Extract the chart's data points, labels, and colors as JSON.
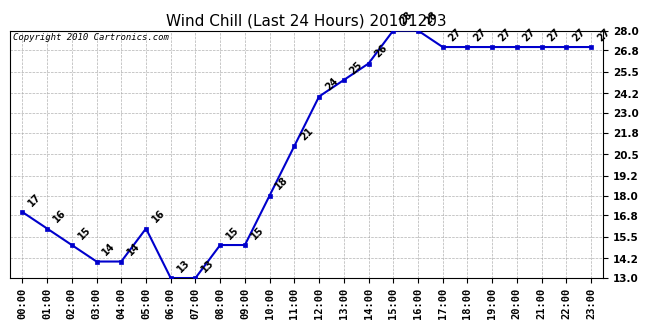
{
  "title": "Wind Chill (Last 24 Hours) 20101203",
  "copyright": "Copyright 2010 Cartronics.com",
  "hours": [
    0,
    1,
    2,
    3,
    4,
    5,
    6,
    7,
    8,
    9,
    10,
    11,
    12,
    13,
    14,
    15,
    16,
    17,
    18,
    19,
    20,
    21,
    22,
    23
  ],
  "values": [
    17,
    16,
    15,
    14,
    14,
    16,
    13,
    13,
    15,
    15,
    18,
    21,
    24,
    25,
    26,
    28,
    28,
    27,
    27,
    27,
    27,
    27,
    27,
    27
  ],
  "ylim": [
    13.0,
    28.0
  ],
  "ytick_vals": [
    13.0,
    14.2,
    15.5,
    16.8,
    18.0,
    19.2,
    20.5,
    21.8,
    23.0,
    24.2,
    25.5,
    26.8,
    28.0
  ],
  "line_color": "#0000cc",
  "marker_color": "#0000cc",
  "bg_color": "#ffffff",
  "grid_color": "#aaaaaa",
  "title_fontsize": 11,
  "annot_fontsize": 7,
  "tick_fontsize": 7.5,
  "copyright_fontsize": 6.5
}
